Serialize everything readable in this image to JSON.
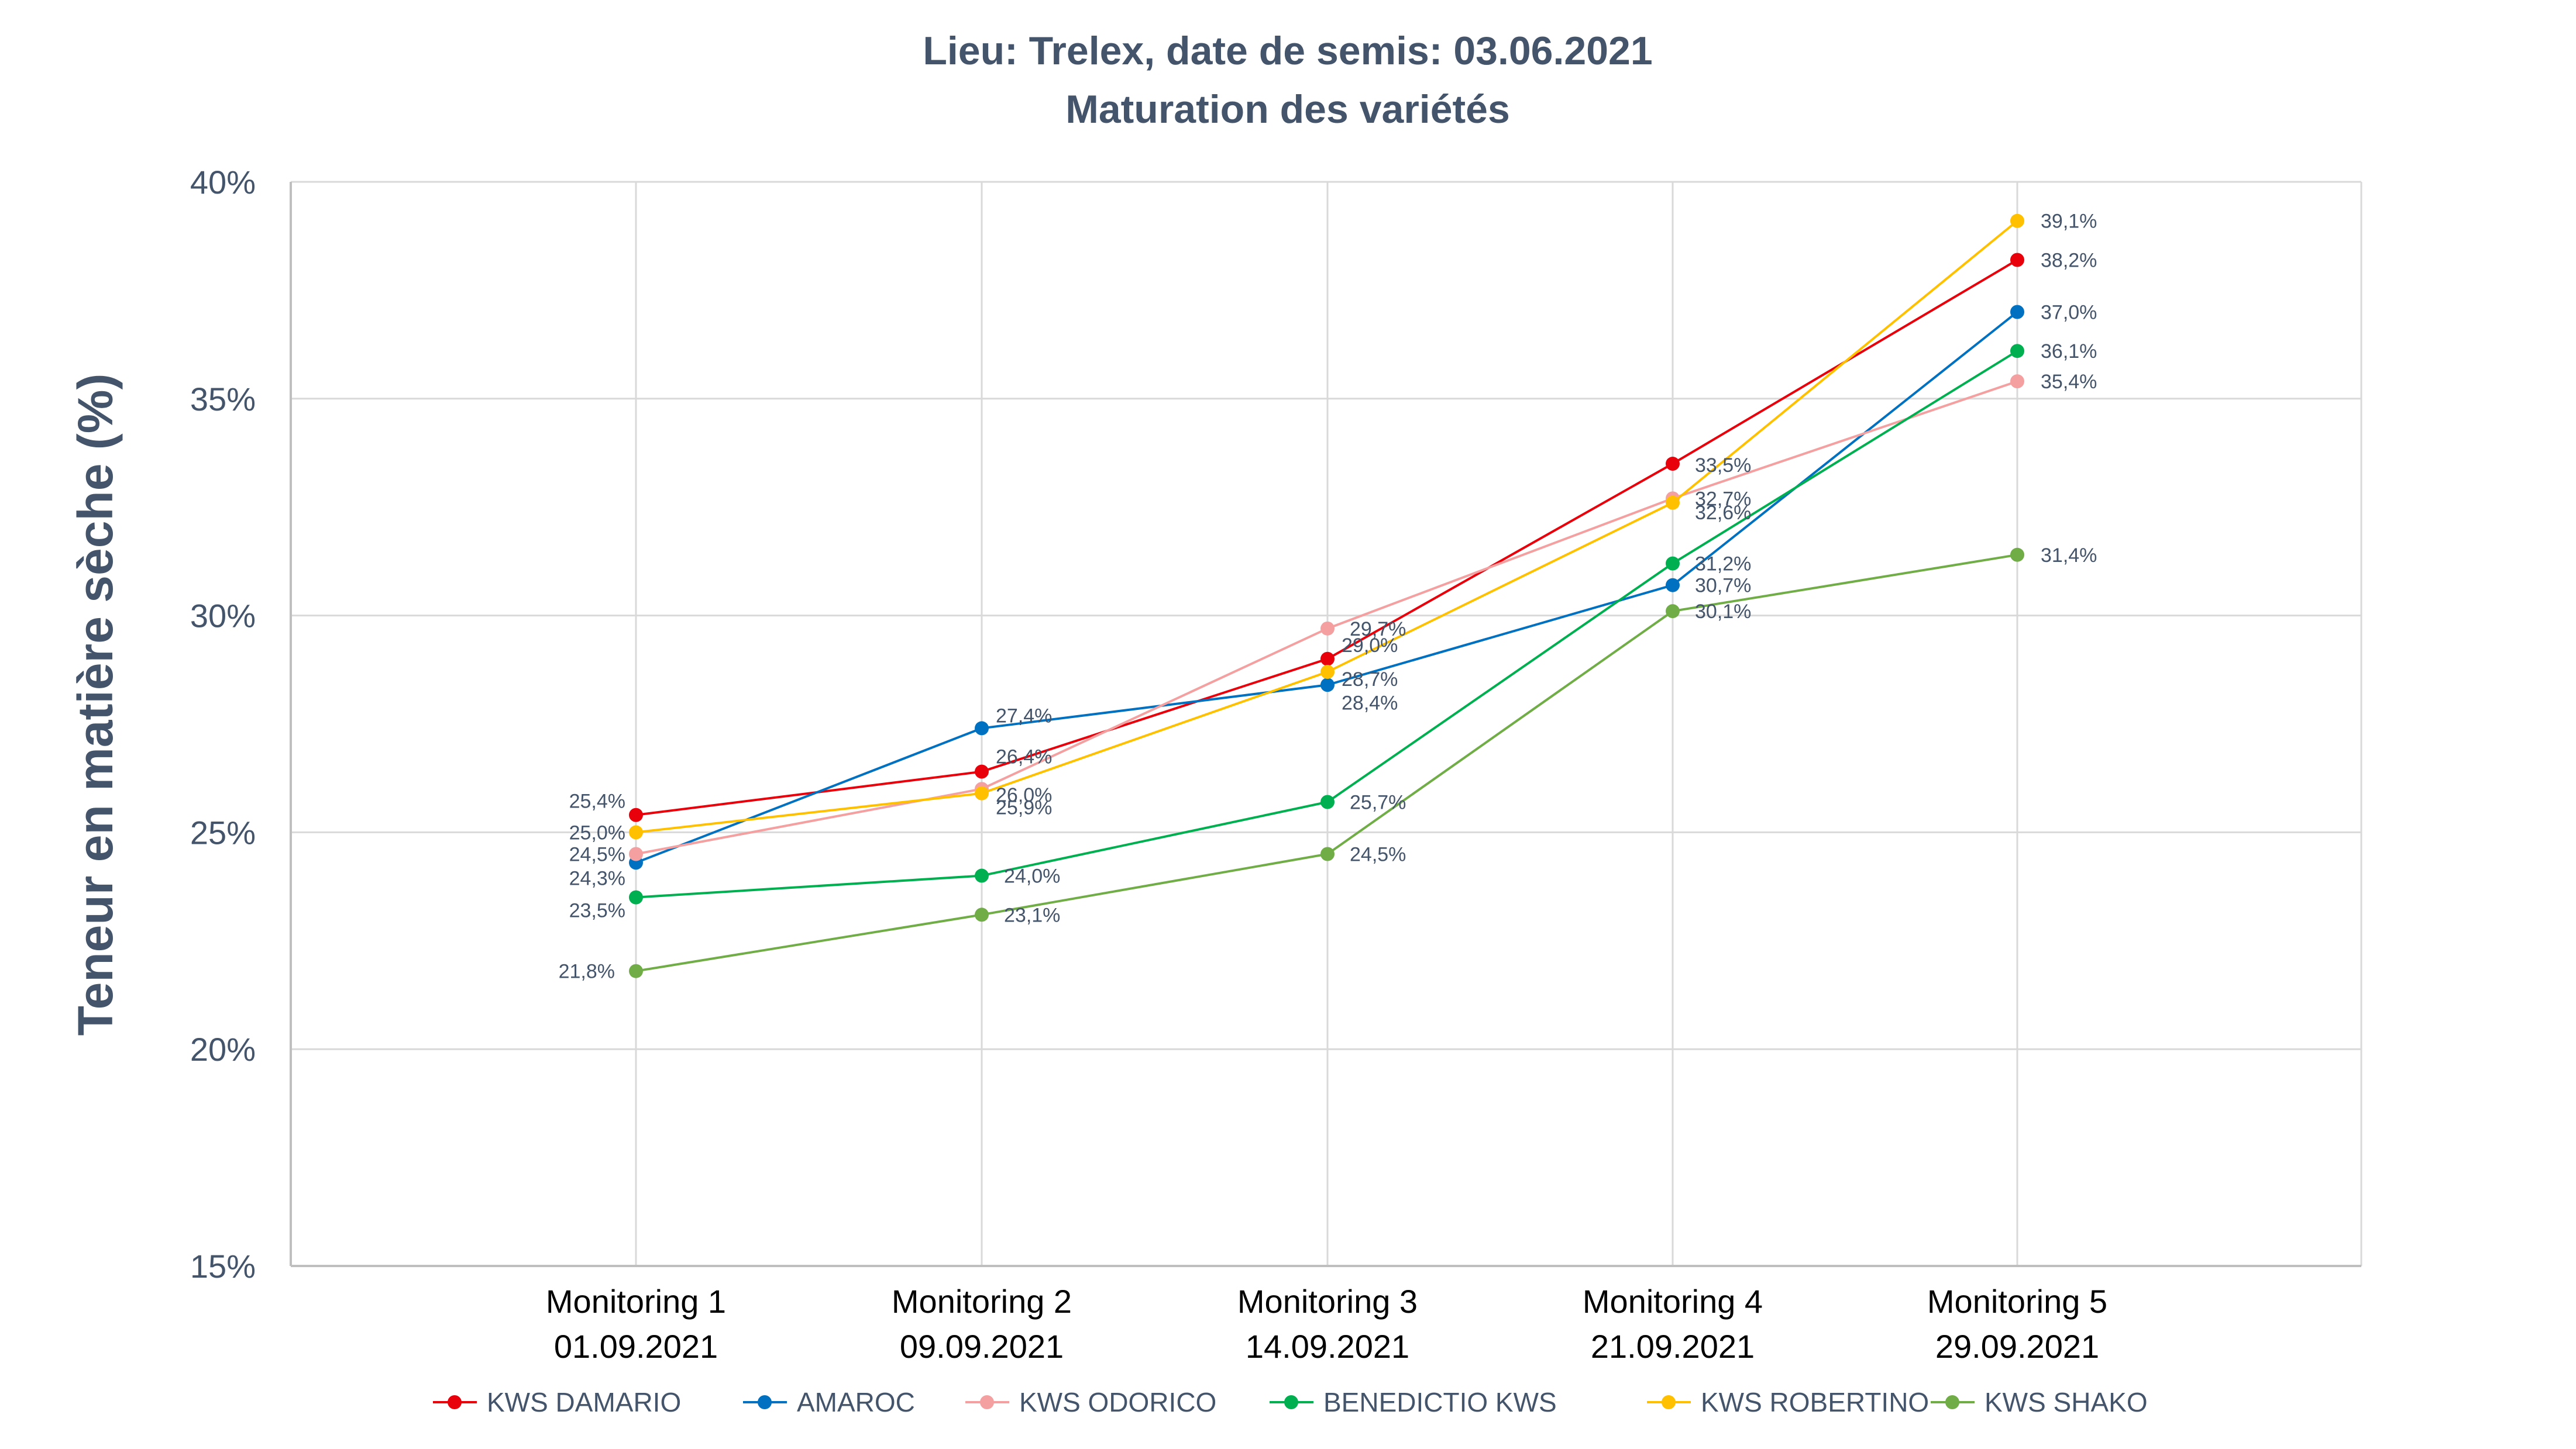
{
  "chart_data": {
    "type": "line",
    "title": "Lieu: Trelex, date de semis: 03.06.2021",
    "subtitle": "Maturation des variétés",
    "ylabel": "Teneur en matière sèche (%)",
    "xlabel": "",
    "ylim": [
      15,
      40
    ],
    "yticks": [
      "15%",
      "20%",
      "25%",
      "30%",
      "35%",
      "40%"
    ],
    "grid": true,
    "legend_position": "bottom",
    "categories": [
      {
        "line1": "Monitoring 1",
        "line2": "01.09.2021"
      },
      {
        "line1": "Monitoring 2",
        "line2": "09.09.2021"
      },
      {
        "line1": "Monitoring 3",
        "line2": "14.09.2021"
      },
      {
        "line1": "Monitoring 4",
        "line2": "21.09.2021"
      },
      {
        "line1": "Monitoring 5",
        "line2": "29.09.2021"
      }
    ],
    "series": [
      {
        "name": "KWS DAMARIO",
        "color": "#e8000b",
        "values": [
          25.4,
          26.4,
          29.0,
          33.5,
          38.2
        ],
        "labels": [
          "25,4%",
          "26,4%",
          "29,0%",
          "33,5%",
          "38,2%"
        ]
      },
      {
        "name": "AMAROC",
        "color": "#0070c0",
        "values": [
          24.3,
          27.4,
          28.4,
          30.7,
          37.0
        ],
        "labels": [
          "24,3%",
          "27,4%",
          "28,4%",
          "30,7%",
          "37,0%"
        ]
      },
      {
        "name": "KWS ODORICO",
        "color": "#f4a0a0",
        "values": [
          24.5,
          26.0,
          29.7,
          32.7,
          35.4
        ],
        "labels": [
          "24,5%",
          "26,0%",
          "29,7%",
          "32,7%",
          "35,4%"
        ]
      },
      {
        "name": "BENEDICTIO KWS",
        "color": "#00b050",
        "values": [
          23.5,
          24.0,
          25.7,
          31.2,
          36.1
        ],
        "labels": [
          "23,5%",
          "24,0%",
          "25,7%",
          "31,2%",
          "36,1%"
        ]
      },
      {
        "name": "KWS ROBERTINO",
        "color": "#ffc000",
        "values": [
          25.0,
          25.9,
          28.7,
          32.6,
          39.1
        ],
        "labels": [
          "25,0%",
          "25,9%",
          "28,7%",
          "32,6%",
          "39,1%"
        ]
      },
      {
        "name": "KWS SHAKO",
        "color": "#70ad47",
        "values": [
          21.8,
          23.1,
          24.5,
          30.1,
          31.4
        ],
        "labels": [
          "21,8%",
          "23,1%",
          "24,5%",
          "30,1%",
          "31,4%"
        ]
      }
    ]
  }
}
